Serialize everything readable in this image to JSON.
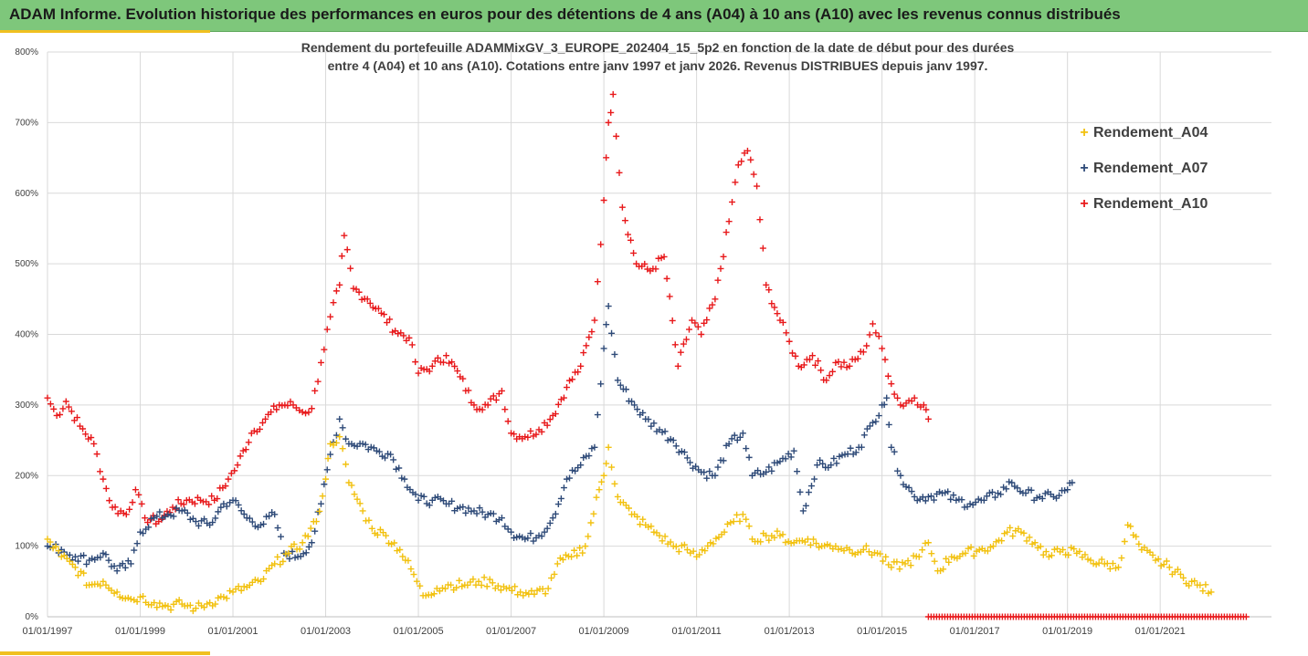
{
  "header": {
    "title": "ADAM Informe. Evolution historique des performances en euros pour des détentions de 4 ans (A04) à 10 ans (A10) avec les revenus connus distribués"
  },
  "colors": {
    "header_bg": "#7ec77b",
    "accent": "#f0c020",
    "A04": "#f2c10f",
    "A07": "#2e4a78",
    "A10": "#e8191b"
  },
  "chart_data": {
    "type": "scatter",
    "subtitle_line1": "Rendement du portefeuille ADAMMixGV_3_EUROPE_202404_15_5p2  en fonction de la date de début pour des durées",
    "subtitle_line2": "entre 4 (A04) et 10 ans (A10). Cotations entre janv 1997 et janv 2026. Revenus DISTRIBUES depuis janv 1997.",
    "ylim": [
      0,
      800
    ],
    "y_ticks": [
      "0%",
      "100%",
      "200%",
      "300%",
      "400%",
      "500%",
      "600%",
      "700%",
      "800%"
    ],
    "x_ticks": [
      "01/01/1997",
      "01/01/1999",
      "01/01/2001",
      "01/01/2003",
      "01/01/2005",
      "01/01/2007",
      "01/01/2009",
      "01/01/2011",
      "01/01/2013",
      "01/01/2015",
      "01/01/2017",
      "01/01/2019",
      "01/01/2021"
    ],
    "grid": true,
    "legend_position": "right",
    "marker": "+",
    "series": [
      {
        "name": "Rendement_A04",
        "points": [
          [
            1997.0,
            110
          ],
          [
            1997.3,
            85
          ],
          [
            1997.6,
            70
          ],
          [
            1997.9,
            45
          ],
          [
            1998.2,
            50
          ],
          [
            1998.5,
            35
          ],
          [
            1998.8,
            25
          ],
          [
            1999.0,
            28
          ],
          [
            1999.3,
            20
          ],
          [
            1999.6,
            15
          ],
          [
            1999.9,
            18
          ],
          [
            2000.2,
            12
          ],
          [
            2000.5,
            20
          ],
          [
            2000.8,
            28
          ],
          [
            2001.0,
            35
          ],
          [
            2001.3,
            42
          ],
          [
            2001.6,
            50
          ],
          [
            2001.9,
            75
          ],
          [
            2002.2,
            90
          ],
          [
            2002.5,
            105
          ],
          [
            2002.8,
            135
          ],
          [
            2003.0,
            195
          ],
          [
            2003.1,
            245
          ],
          [
            2003.3,
            255
          ],
          [
            2003.5,
            190
          ],
          [
            2003.8,
            150
          ],
          [
            2004.0,
            125
          ],
          [
            2004.3,
            115
          ],
          [
            2004.6,
            95
          ],
          [
            2004.9,
            60
          ],
          [
            2005.1,
            30
          ],
          [
            2005.4,
            40
          ],
          [
            2005.7,
            45
          ],
          [
            2006.0,
            45
          ],
          [
            2006.3,
            50
          ],
          [
            2006.6,
            48
          ],
          [
            2006.9,
            40
          ],
          [
            2007.2,
            35
          ],
          [
            2007.5,
            32
          ],
          [
            2007.8,
            40
          ],
          [
            2008.0,
            75
          ],
          [
            2008.3,
            85
          ],
          [
            2008.6,
            100
          ],
          [
            2008.9,
            180
          ],
          [
            2009.0,
            200
          ],
          [
            2009.1,
            240
          ],
          [
            2009.3,
            170
          ],
          [
            2009.6,
            145
          ],
          [
            2009.9,
            130
          ],
          [
            2010.2,
            115
          ],
          [
            2010.5,
            100
          ],
          [
            2010.8,
            95
          ],
          [
            2011.0,
            85
          ],
          [
            2011.3,
            105
          ],
          [
            2011.6,
            120
          ],
          [
            2011.8,
            135
          ],
          [
            2012.0,
            145
          ],
          [
            2012.2,
            110
          ],
          [
            2012.5,
            115
          ],
          [
            2012.8,
            115
          ],
          [
            2013.1,
            105
          ],
          [
            2013.4,
            110
          ],
          [
            2013.7,
            100
          ],
          [
            2014.0,
            100
          ],
          [
            2014.3,
            95
          ],
          [
            2014.6,
            95
          ],
          [
            2014.9,
            90
          ],
          [
            2015.2,
            70
          ],
          [
            2015.5,
            75
          ],
          [
            2015.8,
            85
          ],
          [
            2016.0,
            105
          ],
          [
            2016.2,
            65
          ],
          [
            2016.5,
            85
          ],
          [
            2016.8,
            90
          ],
          [
            2017.1,
            95
          ],
          [
            2017.4,
            100
          ],
          [
            2017.7,
            120
          ],
          [
            2018.0,
            120
          ],
          [
            2018.3,
            105
          ],
          [
            2018.6,
            85
          ],
          [
            2018.9,
            95
          ],
          [
            2019.2,
            90
          ],
          [
            2019.5,
            80
          ],
          [
            2019.8,
            75
          ],
          [
            2020.1,
            70
          ],
          [
            2020.3,
            130
          ],
          [
            2020.6,
            95
          ],
          [
            2020.9,
            80
          ],
          [
            2021.2,
            70
          ],
          [
            2021.5,
            55
          ],
          [
            2021.8,
            45
          ],
          [
            2022.1,
            35
          ]
        ]
      },
      {
        "name": "Rendement_A07",
        "points": [
          [
            1997.0,
            100
          ],
          [
            1997.3,
            95
          ],
          [
            1997.6,
            85
          ],
          [
            1997.9,
            80
          ],
          [
            1998.2,
            90
          ],
          [
            1998.5,
            65
          ],
          [
            1998.8,
            75
          ],
          [
            1999.0,
            120
          ],
          [
            1999.3,
            140
          ],
          [
            1999.6,
            145
          ],
          [
            1999.9,
            150
          ],
          [
            2000.2,
            135
          ],
          [
            2000.5,
            130
          ],
          [
            2000.8,
            160
          ],
          [
            2001.0,
            165
          ],
          [
            2001.3,
            140
          ],
          [
            2001.6,
            130
          ],
          [
            2001.9,
            145
          ],
          [
            2002.1,
            90
          ],
          [
            2002.4,
            85
          ],
          [
            2002.7,
            105
          ],
          [
            2002.9,
            160
          ],
          [
            2003.1,
            230
          ],
          [
            2003.3,
            280
          ],
          [
            2003.5,
            245
          ],
          [
            2003.8,
            245
          ],
          [
            2004.1,
            235
          ],
          [
            2004.4,
            230
          ],
          [
            2004.7,
            195
          ],
          [
            2005.0,
            165
          ],
          [
            2005.3,
            165
          ],
          [
            2005.6,
            160
          ],
          [
            2005.9,
            155
          ],
          [
            2006.2,
            150
          ],
          [
            2006.5,
            145
          ],
          [
            2006.8,
            140
          ],
          [
            2007.0,
            120
          ],
          [
            2007.3,
            110
          ],
          [
            2007.6,
            115
          ],
          [
            2007.9,
            140
          ],
          [
            2008.2,
            195
          ],
          [
            2008.5,
            215
          ],
          [
            2008.8,
            240
          ],
          [
            2009.0,
            380
          ],
          [
            2009.1,
            440
          ],
          [
            2009.3,
            335
          ],
          [
            2009.6,
            305
          ],
          [
            2009.9,
            280
          ],
          [
            2010.2,
            265
          ],
          [
            2010.5,
            250
          ],
          [
            2010.8,
            225
          ],
          [
            2011.1,
            205
          ],
          [
            2011.4,
            200
          ],
          [
            2011.7,
            245
          ],
          [
            2012.0,
            260
          ],
          [
            2012.2,
            200
          ],
          [
            2012.5,
            205
          ],
          [
            2012.8,
            220
          ],
          [
            2013.1,
            235
          ],
          [
            2013.3,
            150
          ],
          [
            2013.6,
            215
          ],
          [
            2013.9,
            215
          ],
          [
            2014.2,
            230
          ],
          [
            2014.5,
            240
          ],
          [
            2014.8,
            275
          ],
          [
            2015.0,
            300
          ],
          [
            2015.1,
            310
          ],
          [
            2015.2,
            240
          ],
          [
            2015.4,
            200
          ],
          [
            2015.7,
            170
          ],
          [
            2016.0,
            170
          ],
          [
            2016.3,
            175
          ],
          [
            2016.6,
            165
          ],
          [
            2016.9,
            160
          ],
          [
            2017.2,
            165
          ],
          [
            2017.5,
            175
          ],
          [
            2017.8,
            190
          ],
          [
            2018.1,
            175
          ],
          [
            2018.4,
            170
          ],
          [
            2018.7,
            170
          ],
          [
            2019.0,
            180
          ],
          [
            2019.1,
            190
          ]
        ]
      },
      {
        "name": "Rendement_A10",
        "points": [
          [
            1997.0,
            310
          ],
          [
            1997.2,
            285
          ],
          [
            1997.4,
            305
          ],
          [
            1997.7,
            270
          ],
          [
            1998.0,
            245
          ],
          [
            1998.2,
            195
          ],
          [
            1998.4,
            155
          ],
          [
            1998.7,
            145
          ],
          [
            1998.9,
            180
          ],
          [
            1999.1,
            140
          ],
          [
            1999.4,
            135
          ],
          [
            1999.7,
            155
          ],
          [
            2000.0,
            165
          ],
          [
            2000.3,
            165
          ],
          [
            2000.6,
            165
          ],
          [
            2000.9,
            195
          ],
          [
            2001.1,
            215
          ],
          [
            2001.4,
            260
          ],
          [
            2001.7,
            280
          ],
          [
            2002.0,
            300
          ],
          [
            2002.3,
            300
          ],
          [
            2002.5,
            290
          ],
          [
            2002.7,
            295
          ],
          [
            2002.9,
            360
          ],
          [
            2003.1,
            425
          ],
          [
            2003.3,
            470
          ],
          [
            2003.4,
            540
          ],
          [
            2003.6,
            465
          ],
          [
            2003.9,
            450
          ],
          [
            2004.2,
            430
          ],
          [
            2004.5,
            405
          ],
          [
            2004.8,
            395
          ],
          [
            2005.0,
            345
          ],
          [
            2005.3,
            355
          ],
          [
            2005.6,
            370
          ],
          [
            2005.9,
            340
          ],
          [
            2006.2,
            300
          ],
          [
            2006.5,
            300
          ],
          [
            2006.8,
            320
          ],
          [
            2007.0,
            260
          ],
          [
            2007.3,
            255
          ],
          [
            2007.6,
            265
          ],
          [
            2007.9,
            285
          ],
          [
            2008.2,
            325
          ],
          [
            2008.5,
            355
          ],
          [
            2008.8,
            420
          ],
          [
            2009.0,
            590
          ],
          [
            2009.1,
            700
          ],
          [
            2009.2,
            740
          ],
          [
            2009.4,
            580
          ],
          [
            2009.7,
            500
          ],
          [
            2010.0,
            490
          ],
          [
            2010.3,
            510
          ],
          [
            2010.6,
            355
          ],
          [
            2010.9,
            420
          ],
          [
            2011.1,
            400
          ],
          [
            2011.4,
            450
          ],
          [
            2011.7,
            560
          ],
          [
            2011.9,
            640
          ],
          [
            2012.1,
            660
          ],
          [
            2012.3,
            610
          ],
          [
            2012.5,
            470
          ],
          [
            2012.8,
            420
          ],
          [
            2013.0,
            390
          ],
          [
            2013.2,
            355
          ],
          [
            2013.5,
            370
          ],
          [
            2013.8,
            335
          ],
          [
            2014.0,
            360
          ],
          [
            2014.3,
            355
          ],
          [
            2014.6,
            375
          ],
          [
            2014.8,
            415
          ],
          [
            2015.0,
            380
          ],
          [
            2015.2,
            330
          ],
          [
            2015.4,
            300
          ],
          [
            2015.7,
            310
          ],
          [
            2015.9,
            300
          ],
          [
            2016.0,
            280
          ]
        ]
      }
    ],
    "zero_band": {
      "series": "Rendement_A10",
      "x_start": 2016.0,
      "x_end": 2022.9,
      "value": 0
    }
  }
}
